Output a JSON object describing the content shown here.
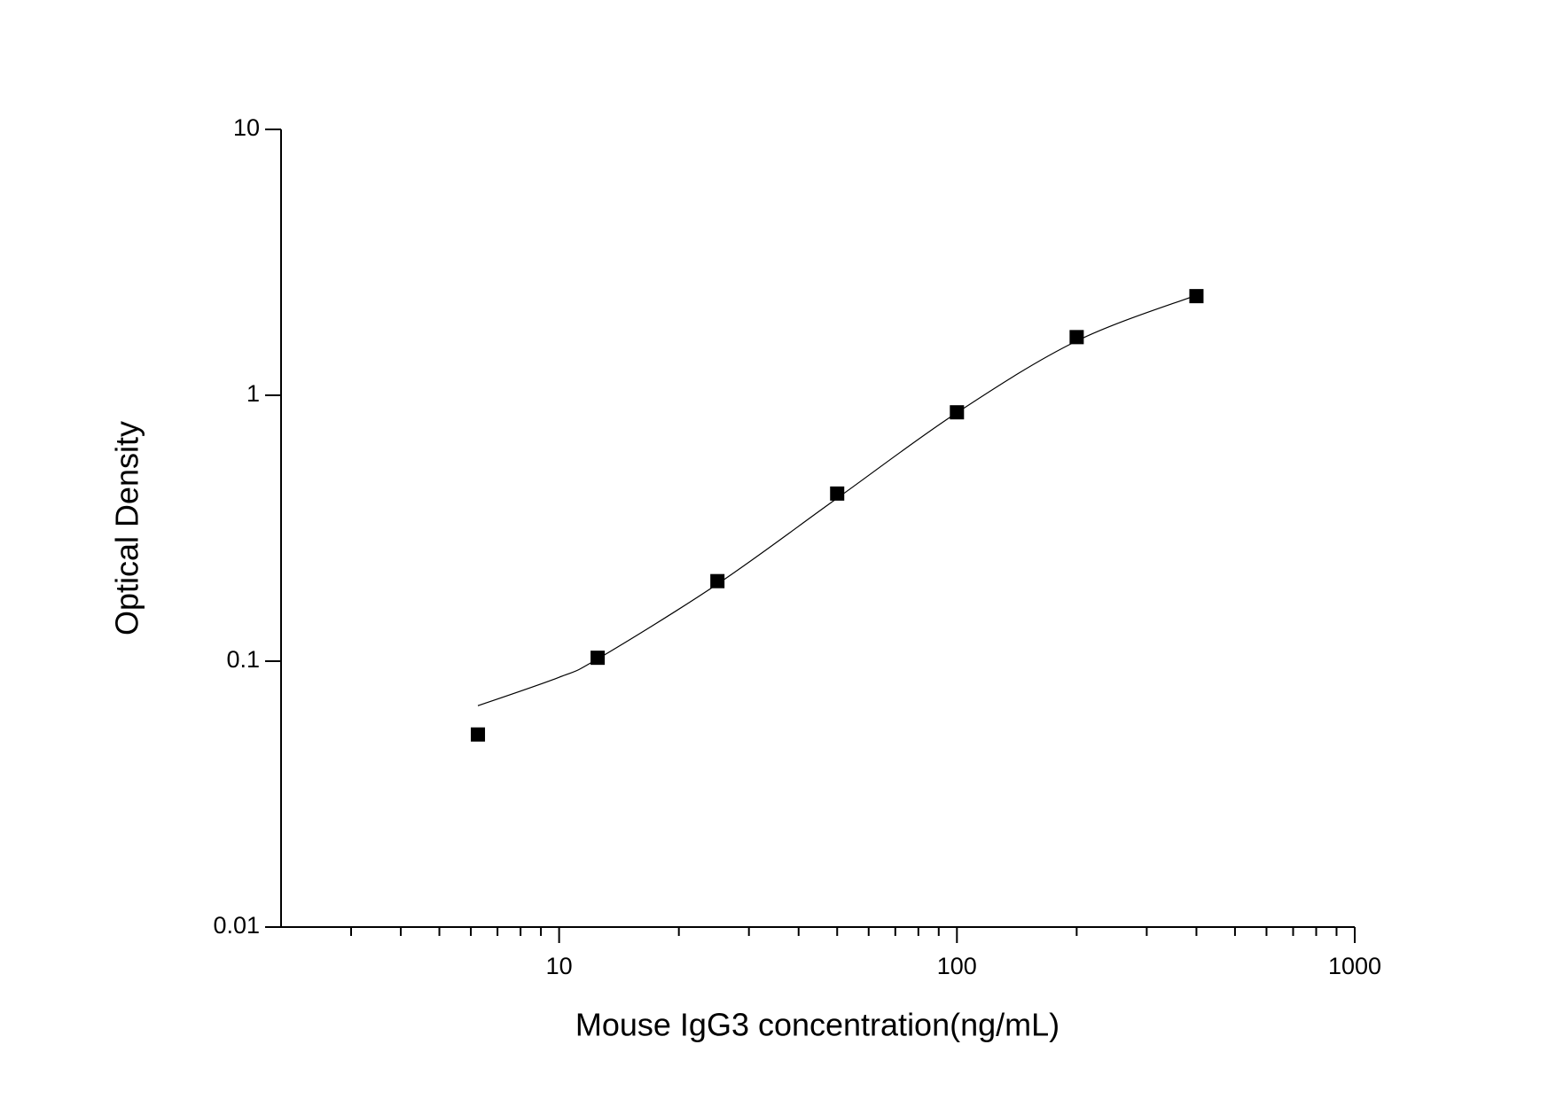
{
  "chart_data": {
    "type": "scatter",
    "x_label": "Mouse IgG3 concentration(ng/mL)",
    "y_label": "Optical Density",
    "xscale": "log",
    "yscale": "log",
    "xlim": [
      2,
      1000
    ],
    "ylim": [
      0.01,
      10
    ],
    "xticks": [
      10,
      100,
      1000
    ],
    "xminorticks": [
      3,
      4,
      5,
      6,
      7,
      8,
      9,
      20,
      30,
      40,
      50,
      60,
      70,
      80,
      90,
      200,
      300,
      400,
      500,
      600,
      700,
      800,
      900
    ],
    "yticks": [
      0.01,
      0.1,
      1,
      10
    ],
    "grid": false,
    "series": [
      {
        "mode": "markers",
        "marker": "square",
        "color": "#000000",
        "x": [
          6.25,
          12.5,
          25,
          50,
          100,
          200,
          400
        ],
        "values": [
          0.053,
          0.103,
          0.2,
          0.427,
          0.863,
          1.655,
          2.36
        ]
      },
      {
        "mode": "line",
        "color": "#000000",
        "x": [
          6.25,
          10,
          12.5,
          25,
          50,
          100,
          200,
          400
        ],
        "values": [
          0.068,
          0.087,
          0.102,
          0.195,
          0.41,
          0.86,
          1.6,
          2.38
        ]
      }
    ]
  }
}
